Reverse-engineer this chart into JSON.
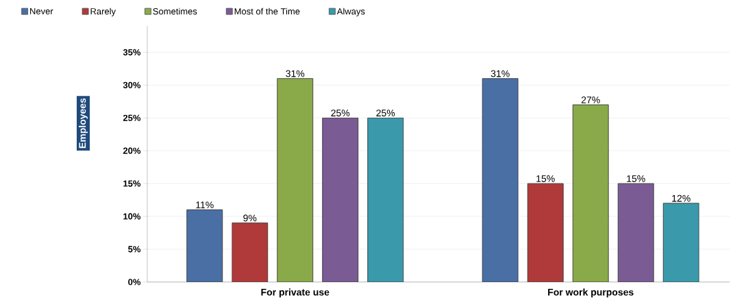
{
  "chart_data": {
    "type": "bar",
    "ylabel": "Employees",
    "categories": [
      "For private use",
      "For work purposes"
    ],
    "series": [
      {
        "name": "Never",
        "color": "#4a6fa5",
        "values": [
          11,
          31
        ],
        "value_labels": [
          "11%",
          "31%"
        ]
      },
      {
        "name": "Rarely",
        "color": "#b03a3a",
        "values": [
          9,
          15
        ],
        "value_labels": [
          "9%",
          "15%"
        ]
      },
      {
        "name": "Sometimes",
        "color": "#8aaa4a",
        "values": [
          31,
          27
        ],
        "value_labels": [
          "31%",
          "27%"
        ]
      },
      {
        "name": "Most of the Time",
        "color": "#7a5b94",
        "values": [
          25,
          15
        ],
        "value_labels": [
          "25%",
          "15%"
        ]
      },
      {
        "name": "Always",
        "color": "#3a9aab",
        "values": [
          25,
          12
        ],
        "value_labels": [
          "25%",
          "12%"
        ]
      }
    ],
    "ylim": [
      0,
      39
    ],
    "yticks": [
      {
        "value": 0,
        "label": "0%"
      },
      {
        "value": 5,
        "label": "5%"
      },
      {
        "value": 10,
        "label": "10%"
      },
      {
        "value": 15,
        "label": "15%"
      },
      {
        "value": 20,
        "label": "20%"
      },
      {
        "value": 25,
        "label": "25%"
      },
      {
        "value": 30,
        "label": "30%"
      },
      {
        "value": 35,
        "label": "35%"
      }
    ],
    "grid": "y",
    "legend": "top"
  }
}
